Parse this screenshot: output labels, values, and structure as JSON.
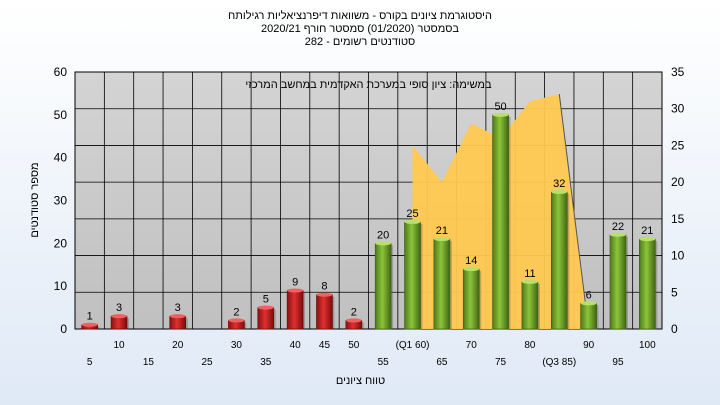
{
  "chart_data": {
    "type": "bar",
    "title_lines": [
      "היסטוגרמת ציונים בקורס - משוואות דיפרנציאליות רגילותח",
      "בסמסטר  (01/2020)  סמסטר חורף 2020/21",
      "סטודנטים רשומים - 282"
    ],
    "annotation": "במשימה: ציון סופי במערכת האקדמית במחשב המרכזי",
    "ylabel": "מספר סטודנטים",
    "xlabel": "טווח ציונים",
    "ylim": [
      0,
      60
    ],
    "y_ticks": [
      0,
      10,
      20,
      30,
      40,
      50,
      60
    ],
    "y2lim": [
      0,
      35
    ],
    "y2_ticks": [
      0,
      5,
      10,
      15,
      20,
      25,
      30,
      35
    ],
    "x_tick_labels_top": [
      "10",
      "20",
      "30",
      "40",
      "45",
      "50",
      "(Q1 60)",
      "70",
      "80",
      "90",
      "100"
    ],
    "x_tick_labels_bottom": [
      "5",
      "15",
      "25",
      "35",
      "55",
      "65",
      "75",
      "(Q3 85)",
      "95"
    ],
    "categories": [
      "5",
      "10",
      "15",
      "20",
      "25",
      "30",
      "35",
      "40",
      "45",
      "50",
      "55",
      "60",
      "65",
      "70",
      "75",
      "80",
      "85",
      "90",
      "95",
      "100"
    ],
    "series": [
      {
        "values": [
          1,
          3,
          null,
          3,
          null,
          2,
          5,
          9,
          8,
          2,
          20,
          25,
          21,
          14,
          50,
          11,
          32,
          6,
          22,
          21
        ]
      }
    ],
    "bar_colors": [
      "red",
      "red",
      null,
      "red",
      null,
      "red",
      "red",
      "red",
      "red",
      "red",
      "green",
      "green",
      "green",
      "green",
      "green",
      "green",
      "green",
      "green",
      "green",
      "green"
    ],
    "area_points": [
      {
        "x": 60,
        "y2": 25
      },
      {
        "x": 65,
        "y2": 20
      },
      {
        "x": 70,
        "y2": 28
      },
      {
        "x": 75,
        "y2": 26
      },
      {
        "x": 80,
        "y2": 31
      },
      {
        "x": 85,
        "y2": 32
      }
    ],
    "grid": true,
    "colors": {
      "plot_bg": "#c0c0c0",
      "grid": "#000000",
      "red": "#e03030",
      "green": "#8dc43a",
      "area": "#ffc850"
    }
  }
}
